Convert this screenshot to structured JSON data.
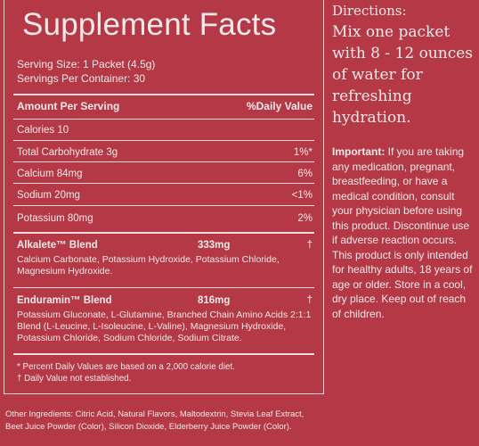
{
  "title": "Supplement Facts",
  "serving_size": "Serving Size: 1 Packet (4.5g)",
  "servings_per_container": "Servings Per Container: 30",
  "header": {
    "amount": "Amount Per Serving",
    "daily_value": "%Daily Value"
  },
  "calories": "Calories 10",
  "nutrients": [
    {
      "name": "Total Carbohydrate 3g",
      "dv": "1%*"
    },
    {
      "name": "Calcium 84mg",
      "dv": "6%"
    },
    {
      "name": "Sodium 20mg",
      "dv": "<1%"
    },
    {
      "name": "Potassium 80mg",
      "dv": "2%"
    }
  ],
  "blends": [
    {
      "name": "Alkalete™ Blend",
      "amount": "333mg",
      "dv": "†",
      "ingredients": "Calcium Carbonate, Potassium Hydroxide, Potassium Chloride, Magnesium Hydroxide."
    },
    {
      "name": "Enduramin™ Blend",
      "amount": "816mg",
      "dv": "†",
      "ingredients": "Potassium Gluconate, L-Glutamine, Branched Chain Amino Acids 2:1:1 Blend (L-Leucine, L-Isoleucine, L-Valine), Magnesium Hydroxide, Potassium Chloride, Sodium Chloride, Sodium Citrate."
    }
  ],
  "footnotes": [
    "* Percent Daily Values are based on a 2,000 calorie diet.",
    "† Daily Value not established."
  ],
  "other_ingredients": "Other Ingredients: Citric Acid, Natural Flavors, Maltodextrin, Stevia Leaf Extract, Beet Juice Powder (Color), Silicon Dioxide, Elderberry Juice Powder (Color).",
  "directions": {
    "label": "Directions:",
    "text": "Mix one packet with 8 - 12 ounces of water for refreshing hydration."
  },
  "important": {
    "label": "Important:",
    "text": " If you are taking any medication, pregnant, breastfeeding, or have a medical condition, consult your physician before using this product. Discontinue use if adverse reaction occurs. This product is only intended for healthy adults, 18 years of age or older. Store in a cool, dry place. Keep out of reach of children."
  },
  "colors": {
    "background": "#b43845",
    "text": "#f6e9ea",
    "rule": "#f1d9dc"
  }
}
